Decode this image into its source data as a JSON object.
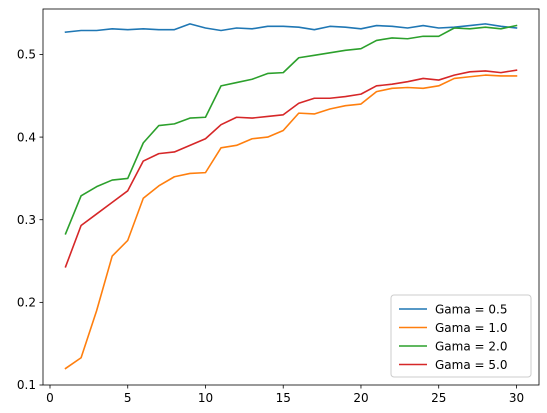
{
  "chart_data": {
    "type": "line",
    "title": "",
    "xlabel": "",
    "ylabel": "",
    "xlim": [
      -0.45,
      31.45
    ],
    "ylim": [
      0.1,
      0.555
    ],
    "xticks": [
      0,
      5,
      10,
      15,
      20,
      25,
      30
    ],
    "yticks": [
      0.1,
      0.2,
      0.3,
      0.4,
      0.5
    ],
    "xtick_labels": [
      "0",
      "5",
      "10",
      "15",
      "20",
      "25",
      "30"
    ],
    "ytick_labels": [
      "0.1",
      "0.2",
      "0.3",
      "0.4",
      "0.5"
    ],
    "grid": false,
    "legend_position": "lower-right",
    "x": [
      1,
      2,
      3,
      4,
      5,
      6,
      7,
      8,
      9,
      10,
      11,
      12,
      13,
      14,
      15,
      16,
      17,
      18,
      19,
      20,
      21,
      22,
      23,
      24,
      25,
      26,
      27,
      28,
      29,
      30
    ],
    "series": [
      {
        "name": "Gama = 0.5",
        "color": "#1f77b4",
        "values": [
          0.527,
          0.529,
          0.529,
          0.531,
          0.53,
          0.531,
          0.53,
          0.53,
          0.537,
          0.532,
          0.529,
          0.532,
          0.531,
          0.534,
          0.534,
          0.533,
          0.53,
          0.534,
          0.533,
          0.531,
          0.535,
          0.534,
          0.532,
          0.535,
          0.532,
          0.533,
          0.535,
          0.537,
          0.534,
          0.532
        ]
      },
      {
        "name": "Gama = 1.0",
        "color": "#ff7f0e",
        "values": [
          0.12,
          0.133,
          0.19,
          0.256,
          0.275,
          0.326,
          0.341,
          0.352,
          0.356,
          0.357,
          0.387,
          0.39,
          0.398,
          0.4,
          0.408,
          0.429,
          0.428,
          0.434,
          0.438,
          0.44,
          0.455,
          0.459,
          0.46,
          0.459,
          0.462,
          0.471,
          0.473,
          0.475,
          0.474,
          0.474
        ]
      },
      {
        "name": "Gama = 2.0",
        "color": "#2ca02c",
        "values": [
          0.283,
          0.329,
          0.34,
          0.348,
          0.35,
          0.393,
          0.414,
          0.416,
          0.423,
          0.424,
          0.462,
          0.466,
          0.47,
          0.477,
          0.478,
          0.496,
          0.499,
          0.502,
          0.505,
          0.507,
          0.517,
          0.52,
          0.519,
          0.522,
          0.522,
          0.532,
          0.531,
          0.533,
          0.531,
          0.535
        ]
      },
      {
        "name": "Gama = 5.0",
        "color": "#d62728",
        "values": [
          0.243,
          0.293,
          0.307,
          0.321,
          0.335,
          0.371,
          0.38,
          0.382,
          0.39,
          0.398,
          0.415,
          0.424,
          0.423,
          0.425,
          0.427,
          0.441,
          0.447,
          0.447,
          0.449,
          0.452,
          0.462,
          0.464,
          0.467,
          0.471,
          0.469,
          0.475,
          0.479,
          0.48,
          0.478,
          0.481
        ]
      }
    ]
  }
}
